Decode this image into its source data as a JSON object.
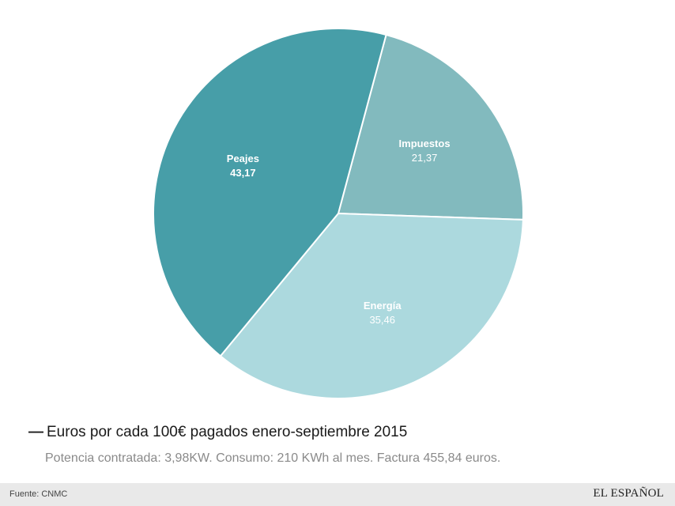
{
  "chart_data": {
    "type": "pie",
    "title": "Euros por cada 100€ pagados enero-septiembre 2015",
    "subtitle": "Potencia contratada: 3,98KW. Consumo: 210 KWh al mes. Factura 455,84 euros.",
    "slices": [
      {
        "label": "Impuestos",
        "value": 21.37,
        "value_label": "21,37",
        "color": "#82babe"
      },
      {
        "label": "Energía",
        "value": 35.46,
        "value_label": "35,46",
        "color": "#acd9de"
      },
      {
        "label": "Peajes",
        "value": 43.17,
        "value_label": "43,17",
        "color": "#479ea8"
      }
    ]
  },
  "caption": {
    "dash": "—",
    "title": "Euros por cada 100€ pagados enero-septiembre 2015"
  },
  "subtitle": "Potencia contratada: 3,98KW. Consumo: 210 KWh al mes. Factura 455,84 euros.",
  "footer": {
    "source": "Fuente: CNMC",
    "brand": "EL ESPAÑOL"
  }
}
